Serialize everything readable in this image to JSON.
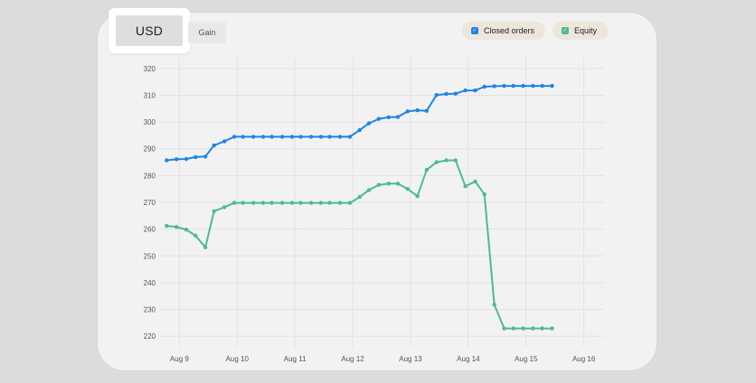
{
  "tabs": [
    {
      "label": "USD",
      "active": true
    },
    {
      "label": "Gain",
      "active": false
    }
  ],
  "legend": [
    {
      "label": "Closed orders",
      "color": "#1e84e6"
    },
    {
      "label": "Equity",
      "color": "#4cbb90"
    }
  ],
  "chart_data": {
    "type": "line",
    "title": "",
    "xlabel": "",
    "ylabel": "",
    "grid": true,
    "legend_position": "top-right",
    "x_ticks": [
      "Aug 9",
      "Aug 10",
      "Aug 11",
      "Aug 12",
      "Aug 13",
      "Aug 14",
      "Aug 15",
      "Aug 16"
    ],
    "y_ticks": [
      220,
      230,
      240,
      250,
      260,
      270,
      280,
      290,
      300,
      310,
      320
    ],
    "xlim": [
      8.65,
      16.35
    ],
    "ylim": [
      216,
      324
    ],
    "series": [
      {
        "name": "Closed orders",
        "color": "#1e84e6",
        "points": [
          [
            8.78,
            285.7
          ],
          [
            8.95,
            286.1
          ],
          [
            9.12,
            286.2
          ],
          [
            9.28,
            286.9
          ],
          [
            9.45,
            287.1
          ],
          [
            9.6,
            291.3
          ],
          [
            9.78,
            292.8
          ],
          [
            9.95,
            294.5
          ],
          [
            10.1,
            294.5
          ],
          [
            10.28,
            294.5
          ],
          [
            10.45,
            294.5
          ],
          [
            10.6,
            294.5
          ],
          [
            10.78,
            294.5
          ],
          [
            10.95,
            294.5
          ],
          [
            11.1,
            294.5
          ],
          [
            11.28,
            294.5
          ],
          [
            11.45,
            294.5
          ],
          [
            11.6,
            294.5
          ],
          [
            11.78,
            294.5
          ],
          [
            11.95,
            294.5
          ],
          [
            12.12,
            297.0
          ],
          [
            12.28,
            299.5
          ],
          [
            12.45,
            301.2
          ],
          [
            12.62,
            301.8
          ],
          [
            12.78,
            301.9
          ],
          [
            12.95,
            304.0
          ],
          [
            13.12,
            304.4
          ],
          [
            13.28,
            304.2
          ],
          [
            13.45,
            310.1
          ],
          [
            13.62,
            310.5
          ],
          [
            13.78,
            310.6
          ],
          [
            13.95,
            311.8
          ],
          [
            14.12,
            311.8
          ],
          [
            14.28,
            313.2
          ],
          [
            14.45,
            313.4
          ],
          [
            14.62,
            313.5
          ],
          [
            14.78,
            313.5
          ],
          [
            14.95,
            313.5
          ],
          [
            15.12,
            313.5
          ],
          [
            15.28,
            313.5
          ],
          [
            15.45,
            313.5
          ]
        ]
      },
      {
        "name": "Equity",
        "color": "#4cbb90",
        "points": [
          [
            8.78,
            261.2
          ],
          [
            8.95,
            260.8
          ],
          [
            9.12,
            259.8
          ],
          [
            9.28,
            257.5
          ],
          [
            9.45,
            253.2
          ],
          [
            9.6,
            266.7
          ],
          [
            9.78,
            268.2
          ],
          [
            9.95,
            269.8
          ],
          [
            10.1,
            269.8
          ],
          [
            10.28,
            269.8
          ],
          [
            10.45,
            269.8
          ],
          [
            10.6,
            269.8
          ],
          [
            10.78,
            269.8
          ],
          [
            10.95,
            269.8
          ],
          [
            11.1,
            269.8
          ],
          [
            11.28,
            269.8
          ],
          [
            11.45,
            269.8
          ],
          [
            11.6,
            269.8
          ],
          [
            11.78,
            269.8
          ],
          [
            11.95,
            269.8
          ],
          [
            12.12,
            272.0
          ],
          [
            12.28,
            274.6
          ],
          [
            12.45,
            276.5
          ],
          [
            12.62,
            277.0
          ],
          [
            12.78,
            277.0
          ],
          [
            12.95,
            275.0
          ],
          [
            13.12,
            272.3
          ],
          [
            13.28,
            282.1
          ],
          [
            13.45,
            285.0
          ],
          [
            13.62,
            285.7
          ],
          [
            13.78,
            285.7
          ],
          [
            13.95,
            276.0
          ],
          [
            14.12,
            277.8
          ],
          [
            14.28,
            273.0
          ],
          [
            14.45,
            231.8
          ],
          [
            14.62,
            222.9
          ],
          [
            14.78,
            222.9
          ],
          [
            14.95,
            222.9
          ],
          [
            15.12,
            222.9
          ],
          [
            15.28,
            222.9
          ],
          [
            15.45,
            222.9
          ]
        ]
      }
    ]
  }
}
